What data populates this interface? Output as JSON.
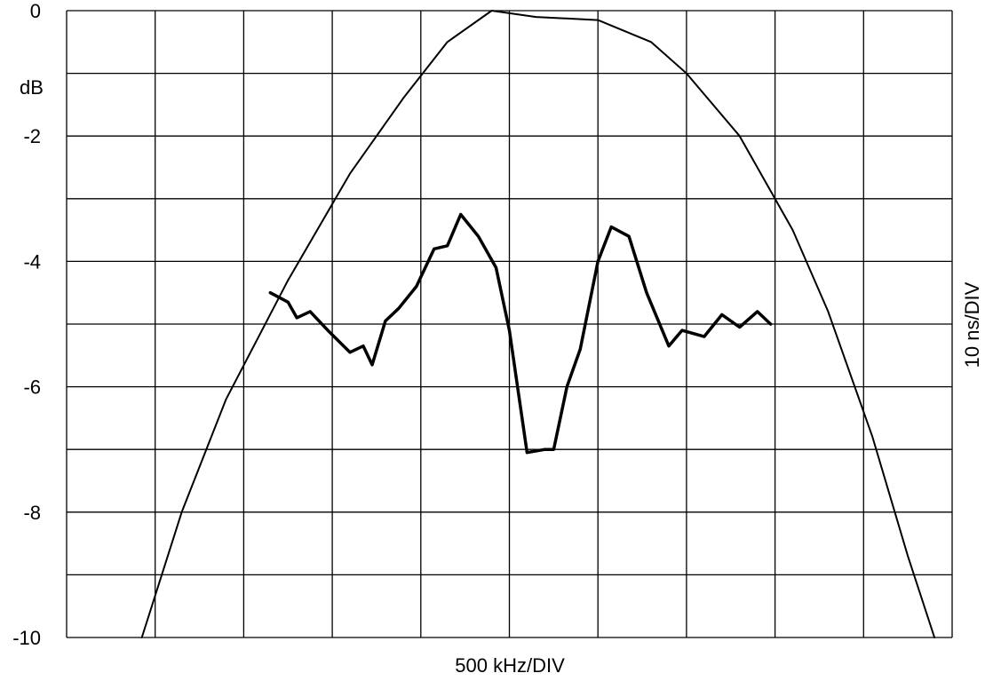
{
  "chart_data": {
    "type": "line",
    "xlabel": "500 kHz/DIV",
    "ylabel": "dB",
    "y2label": "10 ns/DIV",
    "xlim": [
      0,
      10
    ],
    "ylim": [
      -10,
      0
    ],
    "yticks": [
      "0",
      "-2",
      "-4",
      "-6",
      "-8",
      "-10"
    ],
    "grid": true,
    "colors": {
      "line": "#000000",
      "grid": "#000000",
      "background": "#ffffff"
    },
    "series": [
      {
        "x": [
          0.85,
          1.3,
          1.8,
          2.5,
          3.2,
          3.8,
          4.3,
          4.8,
          5.3,
          6.0,
          6.6,
          7.0,
          7.6,
          8.2,
          8.6,
          9.1,
          9.5,
          9.8
        ],
        "values": [
          -10.0,
          -8.0,
          -6.2,
          -4.3,
          -2.6,
          -1.4,
          -0.5,
          0.0,
          -0.1,
          -0.15,
          -0.5,
          -1.0,
          -2.0,
          -3.5,
          -4.8,
          -6.8,
          -8.7,
          -10.0
        ],
        "width": 2
      },
      {
        "x": [
          2.3,
          2.5,
          2.6,
          2.75,
          2.95,
          3.2,
          3.35,
          3.45,
          3.6,
          3.75,
          3.95,
          4.15,
          4.3,
          4.45,
          4.65,
          4.85,
          5.0,
          5.2,
          5.4,
          5.5,
          5.65,
          5.8,
          6.0,
          6.15,
          6.35,
          6.55,
          6.8,
          6.95,
          7.2,
          7.4,
          7.6,
          7.8,
          7.95
        ],
        "values": [
          -4.5,
          -4.65,
          -4.9,
          -4.8,
          -5.1,
          -5.45,
          -5.35,
          -5.65,
          -4.95,
          -4.75,
          -4.4,
          -3.8,
          -3.75,
          -3.25,
          -3.6,
          -4.1,
          -5.1,
          -7.05,
          -7.0,
          -7.0,
          -6.0,
          -5.4,
          -4.0,
          -3.45,
          -3.6,
          -4.5,
          -5.35,
          -5.1,
          -5.2,
          -4.85,
          -5.05,
          -4.8,
          -5.0
        ],
        "width": 3.5
      }
    ]
  }
}
